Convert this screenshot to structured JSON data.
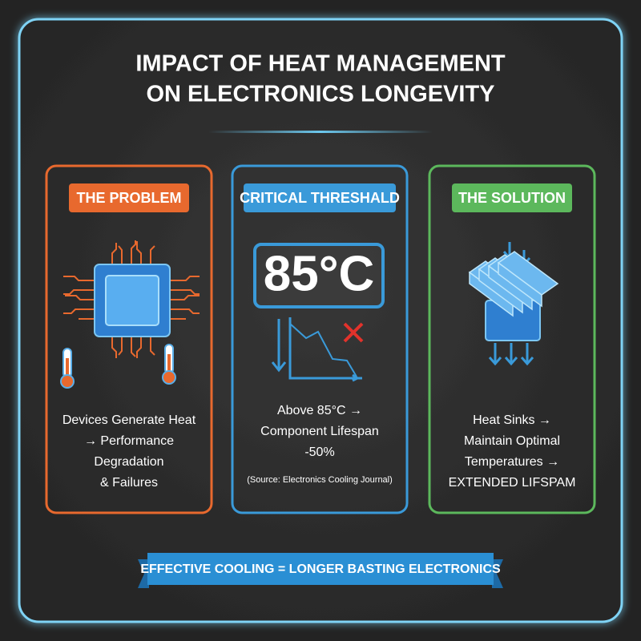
{
  "header": {
    "title": [
      "IMPACT OF HEAT MANAGEMENT",
      "ON ELECTRONICS LONGEVITY"
    ]
  },
  "panels": [
    {
      "heading": "THE PROBLEM",
      "body": [
        "Devices Generate Heat",
        "→ Performance",
        "Degradation",
        "& Failures"
      ]
    },
    {
      "heading": "CRITICAL THRESHALD",
      "value": "85°C",
      "body": [
        "Above 85°C →",
        "Component Lifespan",
        "-50%"
      ],
      "source": "(Source: Electronics Cooling Journal)"
    },
    {
      "heading": "THE SOLUTION",
      "body": [
        "Heat Sinks →",
        "Maintain Optimal",
        "Temperatures →",
        "EXTENDED LIFSPAM"
      ]
    }
  ],
  "footer": {
    "banner": "EFFECTIVE COOLING = LONGER BASTING ELECTRONICS"
  }
}
